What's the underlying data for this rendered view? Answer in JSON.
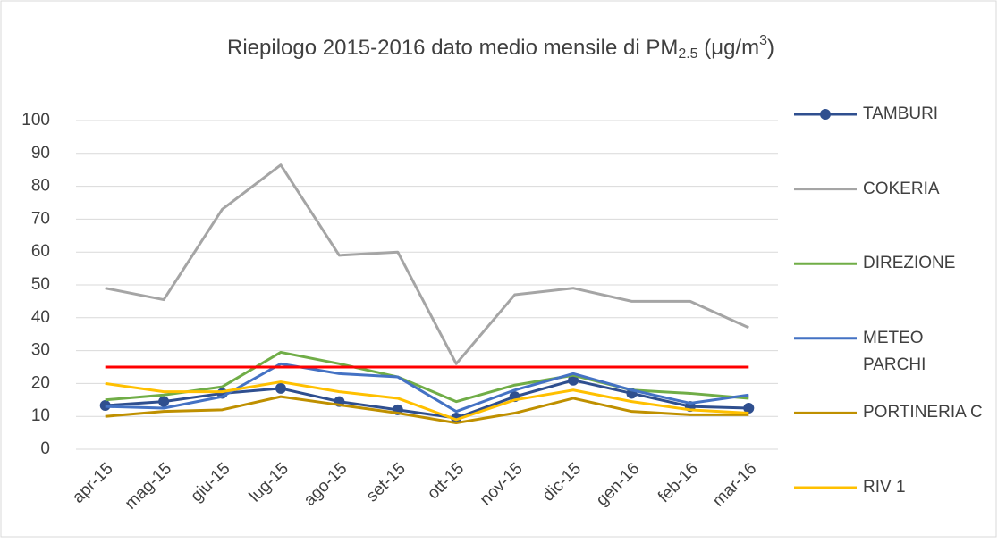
{
  "chart_data": {
    "type": "line",
    "title": [
      "Riepilogo 2015-2016 dato medio mensile di PM",
      "2.5",
      " (μg/m",
      "3",
      ")"
    ],
    "categories": [
      "apr-15",
      "mag-15",
      "giu-15",
      "lug-15",
      "ago-15",
      "set-15",
      "ott-15",
      "nov-15",
      "dic-15",
      "gen-16",
      "feb-16",
      "mar-16"
    ],
    "series": [
      {
        "name": "TAMBURI",
        "color": "#2f4f8f",
        "marker": "circle",
        "values": [
          13.3,
          14.5,
          17,
          18.5,
          14.5,
          12,
          9.5,
          16,
          21,
          17,
          13,
          12.5
        ]
      },
      {
        "name": "COKERIA",
        "color": "#a5a5a5",
        "values": [
          49,
          45.5,
          73,
          86.5,
          59,
          60,
          26,
          47,
          49,
          45,
          45,
          37
        ]
      },
      {
        "name": "DIREZIONE",
        "color": "#70ad47",
        "values": [
          15,
          16.5,
          19,
          29.5,
          26,
          22,
          14.5,
          19.5,
          22.5,
          18,
          17,
          15.5
        ]
      },
      {
        "name": "METEO\nPARCHI",
        "color": "#4472c4",
        "values": [
          13,
          12.5,
          16,
          26,
          23,
          22,
          11.5,
          18,
          23,
          18,
          14,
          16.5
        ]
      },
      {
        "name": "PORTINERIA C",
        "color": "#bf9000",
        "values": [
          10,
          11.5,
          12,
          16,
          13.5,
          11,
          8,
          11,
          15.5,
          11.5,
          10.5,
          10.5
        ]
      },
      {
        "name": "RIV 1",
        "color": "#ffc000",
        "values": [
          20,
          17.5,
          17.5,
          20.5,
          17.5,
          15.5,
          9,
          15,
          18,
          14.5,
          12,
          11
        ]
      }
    ],
    "reference_line": {
      "value": 25,
      "color": "#ff0000"
    },
    "ylim": [
      0,
      100
    ],
    "yticks": [
      0,
      10,
      20,
      30,
      40,
      50,
      60,
      70,
      80,
      90,
      100
    ],
    "grid": true,
    "legend": "right"
  }
}
